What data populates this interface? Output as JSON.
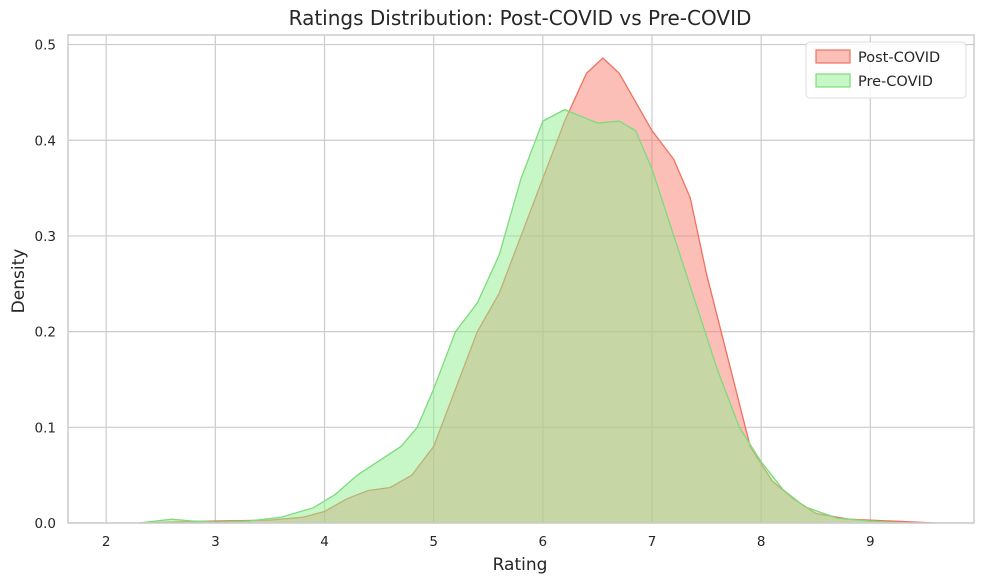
{
  "chart_data": {
    "type": "area",
    "title": "Ratings Distribution: Post-COVID vs Pre-COVID",
    "xlabel": "Rating",
    "ylabel": "Density",
    "xlim": [
      1.65,
      9.95
    ],
    "ylim": [
      0,
      0.51
    ],
    "x_ticks": [
      2,
      3,
      4,
      5,
      6,
      7,
      8,
      9
    ],
    "y_ticks": [
      0.0,
      0.1,
      0.2,
      0.3,
      0.4,
      0.5
    ],
    "y_tick_labels": [
      "0.0",
      "0.1",
      "0.2",
      "0.3",
      "0.4",
      "0.5"
    ],
    "grid": true,
    "legend": "top-right",
    "series": [
      {
        "name": "Post-COVID",
        "fill": "#fa8072",
        "stroke": "#f07060",
        "opacity": 0.5,
        "points": [
          [
            2.3,
            0.0
          ],
          [
            2.6,
            0.001
          ],
          [
            3.0,
            0.002
          ],
          [
            3.5,
            0.003
          ],
          [
            3.8,
            0.006
          ],
          [
            4.0,
            0.012
          ],
          [
            4.2,
            0.025
          ],
          [
            4.4,
            0.034
          ],
          [
            4.6,
            0.037
          ],
          [
            4.8,
            0.05
          ],
          [
            5.0,
            0.08
          ],
          [
            5.2,
            0.14
          ],
          [
            5.4,
            0.2
          ],
          [
            5.6,
            0.24
          ],
          [
            5.8,
            0.3
          ],
          [
            6.0,
            0.36
          ],
          [
            6.2,
            0.42
          ],
          [
            6.4,
            0.47
          ],
          [
            6.55,
            0.486
          ],
          [
            6.7,
            0.47
          ],
          [
            6.85,
            0.44
          ],
          [
            7.0,
            0.41
          ],
          [
            7.2,
            0.38
          ],
          [
            7.35,
            0.34
          ],
          [
            7.5,
            0.26
          ],
          [
            7.7,
            0.17
          ],
          [
            7.9,
            0.08
          ],
          [
            8.1,
            0.044
          ],
          [
            8.3,
            0.025
          ],
          [
            8.5,
            0.01
          ],
          [
            8.8,
            0.004
          ],
          [
            9.2,
            0.002
          ],
          [
            9.6,
            0.0
          ]
        ]
      },
      {
        "name": "Pre-COVID",
        "fill": "#90ee90",
        "stroke": "#7ddc7d",
        "opacity": 0.5,
        "points": [
          [
            2.3,
            0.0
          ],
          [
            2.6,
            0.004
          ],
          [
            2.8,
            0.002
          ],
          [
            3.0,
            0.001
          ],
          [
            3.3,
            0.002
          ],
          [
            3.6,
            0.006
          ],
          [
            3.9,
            0.016
          ],
          [
            4.1,
            0.03
          ],
          [
            4.3,
            0.05
          ],
          [
            4.5,
            0.065
          ],
          [
            4.7,
            0.08
          ],
          [
            4.85,
            0.1
          ],
          [
            5.0,
            0.14
          ],
          [
            5.2,
            0.2
          ],
          [
            5.4,
            0.23
          ],
          [
            5.6,
            0.28
          ],
          [
            5.8,
            0.36
          ],
          [
            6.0,
            0.42
          ],
          [
            6.2,
            0.432
          ],
          [
            6.35,
            0.425
          ],
          [
            6.5,
            0.418
          ],
          [
            6.7,
            0.42
          ],
          [
            6.85,
            0.41
          ],
          [
            7.0,
            0.37
          ],
          [
            7.2,
            0.3
          ],
          [
            7.4,
            0.23
          ],
          [
            7.6,
            0.16
          ],
          [
            7.8,
            0.1
          ],
          [
            8.0,
            0.064
          ],
          [
            8.2,
            0.035
          ],
          [
            8.4,
            0.017
          ],
          [
            8.7,
            0.005
          ],
          [
            9.0,
            0.002
          ],
          [
            9.3,
            0.0
          ]
        ]
      }
    ]
  }
}
